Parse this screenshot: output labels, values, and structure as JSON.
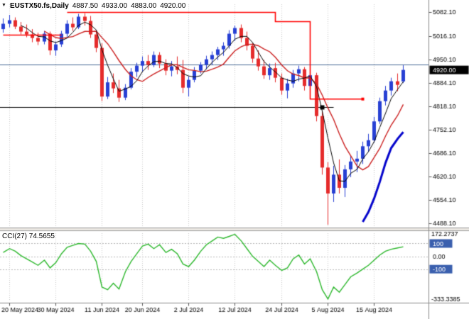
{
  "header": {
    "symbol": "EUSTX50.fs,Daily",
    "open": "4887.50",
    "high": "4933.00",
    "low": "4883.00",
    "close": "4920.00"
  },
  "icons": {
    "dropdown": "▼"
  },
  "colors": {
    "bull": "#2740d4",
    "bear": "#e52b2b",
    "ma_fast": "#000000",
    "ma_slow": "#cc2020",
    "trend_blue": "#0404cc",
    "step_red": "#ff0000",
    "cci_line": "#2db82d",
    "badge_price_bg": "#000000",
    "badge_level_bg": "#3a5fae",
    "hline_gray": "#4a6a96",
    "hline_black": "#000000",
    "grid": "#c8c8c8"
  },
  "chart_data": {
    "type": "candlestick",
    "title": "EUSTX50.fs Daily",
    "price_axis": {
      "view_max": 5105,
      "view_min": 4478,
      "ticks": [
        5082.1,
        5016.1,
        4950.1,
        4884.1,
        4818.1,
        4752.1,
        4686.1,
        4620.1,
        4554.1,
        4488.1
      ],
      "current_price": 4920.0,
      "current_price_label": "4920.00"
    },
    "x_axis": {
      "labels": [
        {
          "text": "20 May 2024",
          "bar": 1
        },
        {
          "text": "30 May 2024",
          "bar": 9
        },
        {
          "text": "11 Jun 2024",
          "bar": 17
        },
        {
          "text": "20 Jun 2024",
          "bar": 24
        },
        {
          "text": "2 Jul 2024",
          "bar": 32
        },
        {
          "text": "12 Jul 2024",
          "bar": 40
        },
        {
          "text": "24 Jul 2024",
          "bar": 48
        },
        {
          "text": "5 Aug 2024",
          "bar": 56
        },
        {
          "text": "15 Aug 2024",
          "bar": 64
        }
      ]
    },
    "candles": [
      [
        5035,
        5065,
        5025,
        5050
      ],
      [
        5050,
        5075,
        5040,
        5060
      ],
      [
        5060,
        5068,
        5035,
        5042
      ],
      [
        5042,
        5055,
        5020,
        5028
      ],
      [
        5028,
        5048,
        5012,
        5020
      ],
      [
        5020,
        5035,
        4998,
        5010
      ],
      [
        5010,
        5025,
        4990,
        5000
      ],
      [
        5000,
        5030,
        4992,
        5022
      ],
      [
        5022,
        5028,
        4962,
        4975
      ],
      [
        4975,
        5000,
        4960,
        4992
      ],
      [
        4992,
        5030,
        4985,
        5022
      ],
      [
        5022,
        5060,
        5012,
        5050
      ],
      [
        5050,
        5068,
        5030,
        5040
      ],
      [
        5040,
        5078,
        5035,
        5070
      ],
      [
        5070,
        5080,
        5045,
        5058
      ],
      [
        5058,
        5072,
        5010,
        5020
      ],
      [
        5020,
        5032,
        4970,
        4982
      ],
      [
        4982,
        4995,
        4832,
        4845
      ],
      [
        4845,
        4900,
        4838,
        4885
      ],
      [
        4885,
        4910,
        4855,
        4868
      ],
      [
        4868,
        4892,
        4830,
        4842
      ],
      [
        4842,
        4880,
        4835,
        4870
      ],
      [
        4870,
        4925,
        4865,
        4915
      ],
      [
        4915,
        4940,
        4900,
        4932
      ],
      [
        4932,
        4958,
        4915,
        4945
      ],
      [
        4945,
        4962,
        4920,
        4934
      ],
      [
        4934,
        4972,
        4928,
        4962
      ],
      [
        4962,
        4970,
        4925,
        4938
      ],
      [
        4938,
        4950,
        4905,
        4918
      ],
      [
        4918,
        4945,
        4902,
        4930
      ],
      [
        4930,
        4958,
        4908,
        4920
      ],
      [
        4920,
        4948,
        4855,
        4870
      ],
      [
        4870,
        4902,
        4845,
        4892
      ],
      [
        4892,
        4928,
        4885,
        4918
      ],
      [
        4918,
        4942,
        4910,
        4935
      ],
      [
        4935,
        4960,
        4922,
        4950
      ],
      [
        4950,
        4972,
        4935,
        4962
      ],
      [
        4962,
        4985,
        4948,
        4978
      ],
      [
        4978,
        4998,
        4960,
        4988
      ],
      [
        4988,
        5032,
        4980,
        5022
      ],
      [
        5022,
        5045,
        5002,
        5038
      ],
      [
        5038,
        5048,
        4998,
        5010
      ],
      [
        5010,
        5028,
        4975,
        4988
      ],
      [
        4988,
        4995,
        4940,
        4952
      ],
      [
        4952,
        4975,
        4918,
        4930
      ],
      [
        4930,
        4948,
        4895,
        4905
      ],
      [
        4905,
        4938,
        4892,
        4925
      ],
      [
        4925,
        4940,
        4885,
        4898
      ],
      [
        4898,
        4910,
        4850,
        4862
      ],
      [
        4862,
        4895,
        4840,
        4882
      ],
      [
        4882,
        4920,
        4870,
        4910
      ],
      [
        4910,
        4932,
        4888,
        4922
      ],
      [
        4922,
        4928,
        4862,
        4875
      ],
      [
        4875,
        4918,
        4868,
        4905
      ],
      [
        4905,
        4912,
        4775,
        4790
      ],
      [
        4790,
        4805,
        4625,
        4645
      ],
      [
        4645,
        4660,
        4484,
        4572
      ],
      [
        4572,
        4650,
        4548,
        4625
      ],
      [
        4625,
        4668,
        4572,
        4588
      ],
      [
        4588,
        4652,
        4562,
        4640
      ],
      [
        4640,
        4678,
        4618,
        4662
      ],
      [
        4662,
        4692,
        4632,
        4670
      ],
      [
        4670,
        4718,
        4655,
        4705
      ],
      [
        4705,
        4740,
        4690,
        4722
      ],
      [
        4722,
        4788,
        4715,
        4775
      ],
      [
        4775,
        4842,
        4768,
        4832
      ],
      [
        4832,
        4875,
        4820,
        4862
      ],
      [
        4862,
        4898,
        4848,
        4888
      ],
      [
        4888,
        4910,
        4860,
        4878
      ],
      [
        4887.5,
        4933,
        4883,
        4920
      ]
    ],
    "overlays": {
      "ma_fast_period": 4,
      "ma_slow_period": 8,
      "blue_trend_points": [
        [
          62,
          4492
        ],
        [
          63,
          4520
        ],
        [
          64,
          4558
        ],
        [
          65,
          4605
        ],
        [
          66,
          4658
        ],
        [
          67,
          4700
        ],
        [
          68,
          4726
        ],
        [
          69,
          4745
        ]
      ],
      "red_step_segments": [
        [
          [
            0,
            5018
          ],
          [
            10,
            5018
          ]
        ],
        [
          [
            11,
            5082
          ],
          [
            47,
            5082
          ],
          [
            47,
            5056
          ],
          [
            53,
            5056
          ],
          [
            53,
            4838
          ],
          [
            62,
            4838
          ]
        ]
      ],
      "hline_gray_price": 4936,
      "hline_black_price": 4816,
      "hline_black_end_bar": 57
    },
    "cci": {
      "label": "CCI(27) 74.5655",
      "view_max": 180,
      "view_min": -345,
      "max_tick_label": "172.2737",
      "min_tick_label": "-333.3385",
      "levels": [
        {
          "label": "100",
          "value": 100,
          "badge": true
        },
        {
          "label": "0.00",
          "value": 0,
          "badge": false
        },
        {
          "label": "-100",
          "value": -100,
          "badge": true
        }
      ],
      "values": [
        30,
        60,
        40,
        5,
        -20,
        -45,
        -70,
        -30,
        -90,
        -50,
        20,
        70,
        85,
        100,
        95,
        40,
        -40,
        -240,
        -260,
        -210,
        -255,
        -120,
        -40,
        20,
        80,
        95,
        60,
        90,
        30,
        55,
        20,
        -60,
        -80,
        -30,
        40,
        90,
        120,
        150,
        140,
        155,
        172,
        120,
        60,
        0,
        -40,
        -80,
        -30,
        -70,
        -110,
        -90,
        -20,
        10,
        -60,
        -20,
        -120,
        -260,
        -333,
        -240,
        -280,
        -220,
        -160,
        -130,
        -100,
        -70,
        -30,
        10,
        40,
        55,
        65,
        74.57
      ]
    }
  }
}
